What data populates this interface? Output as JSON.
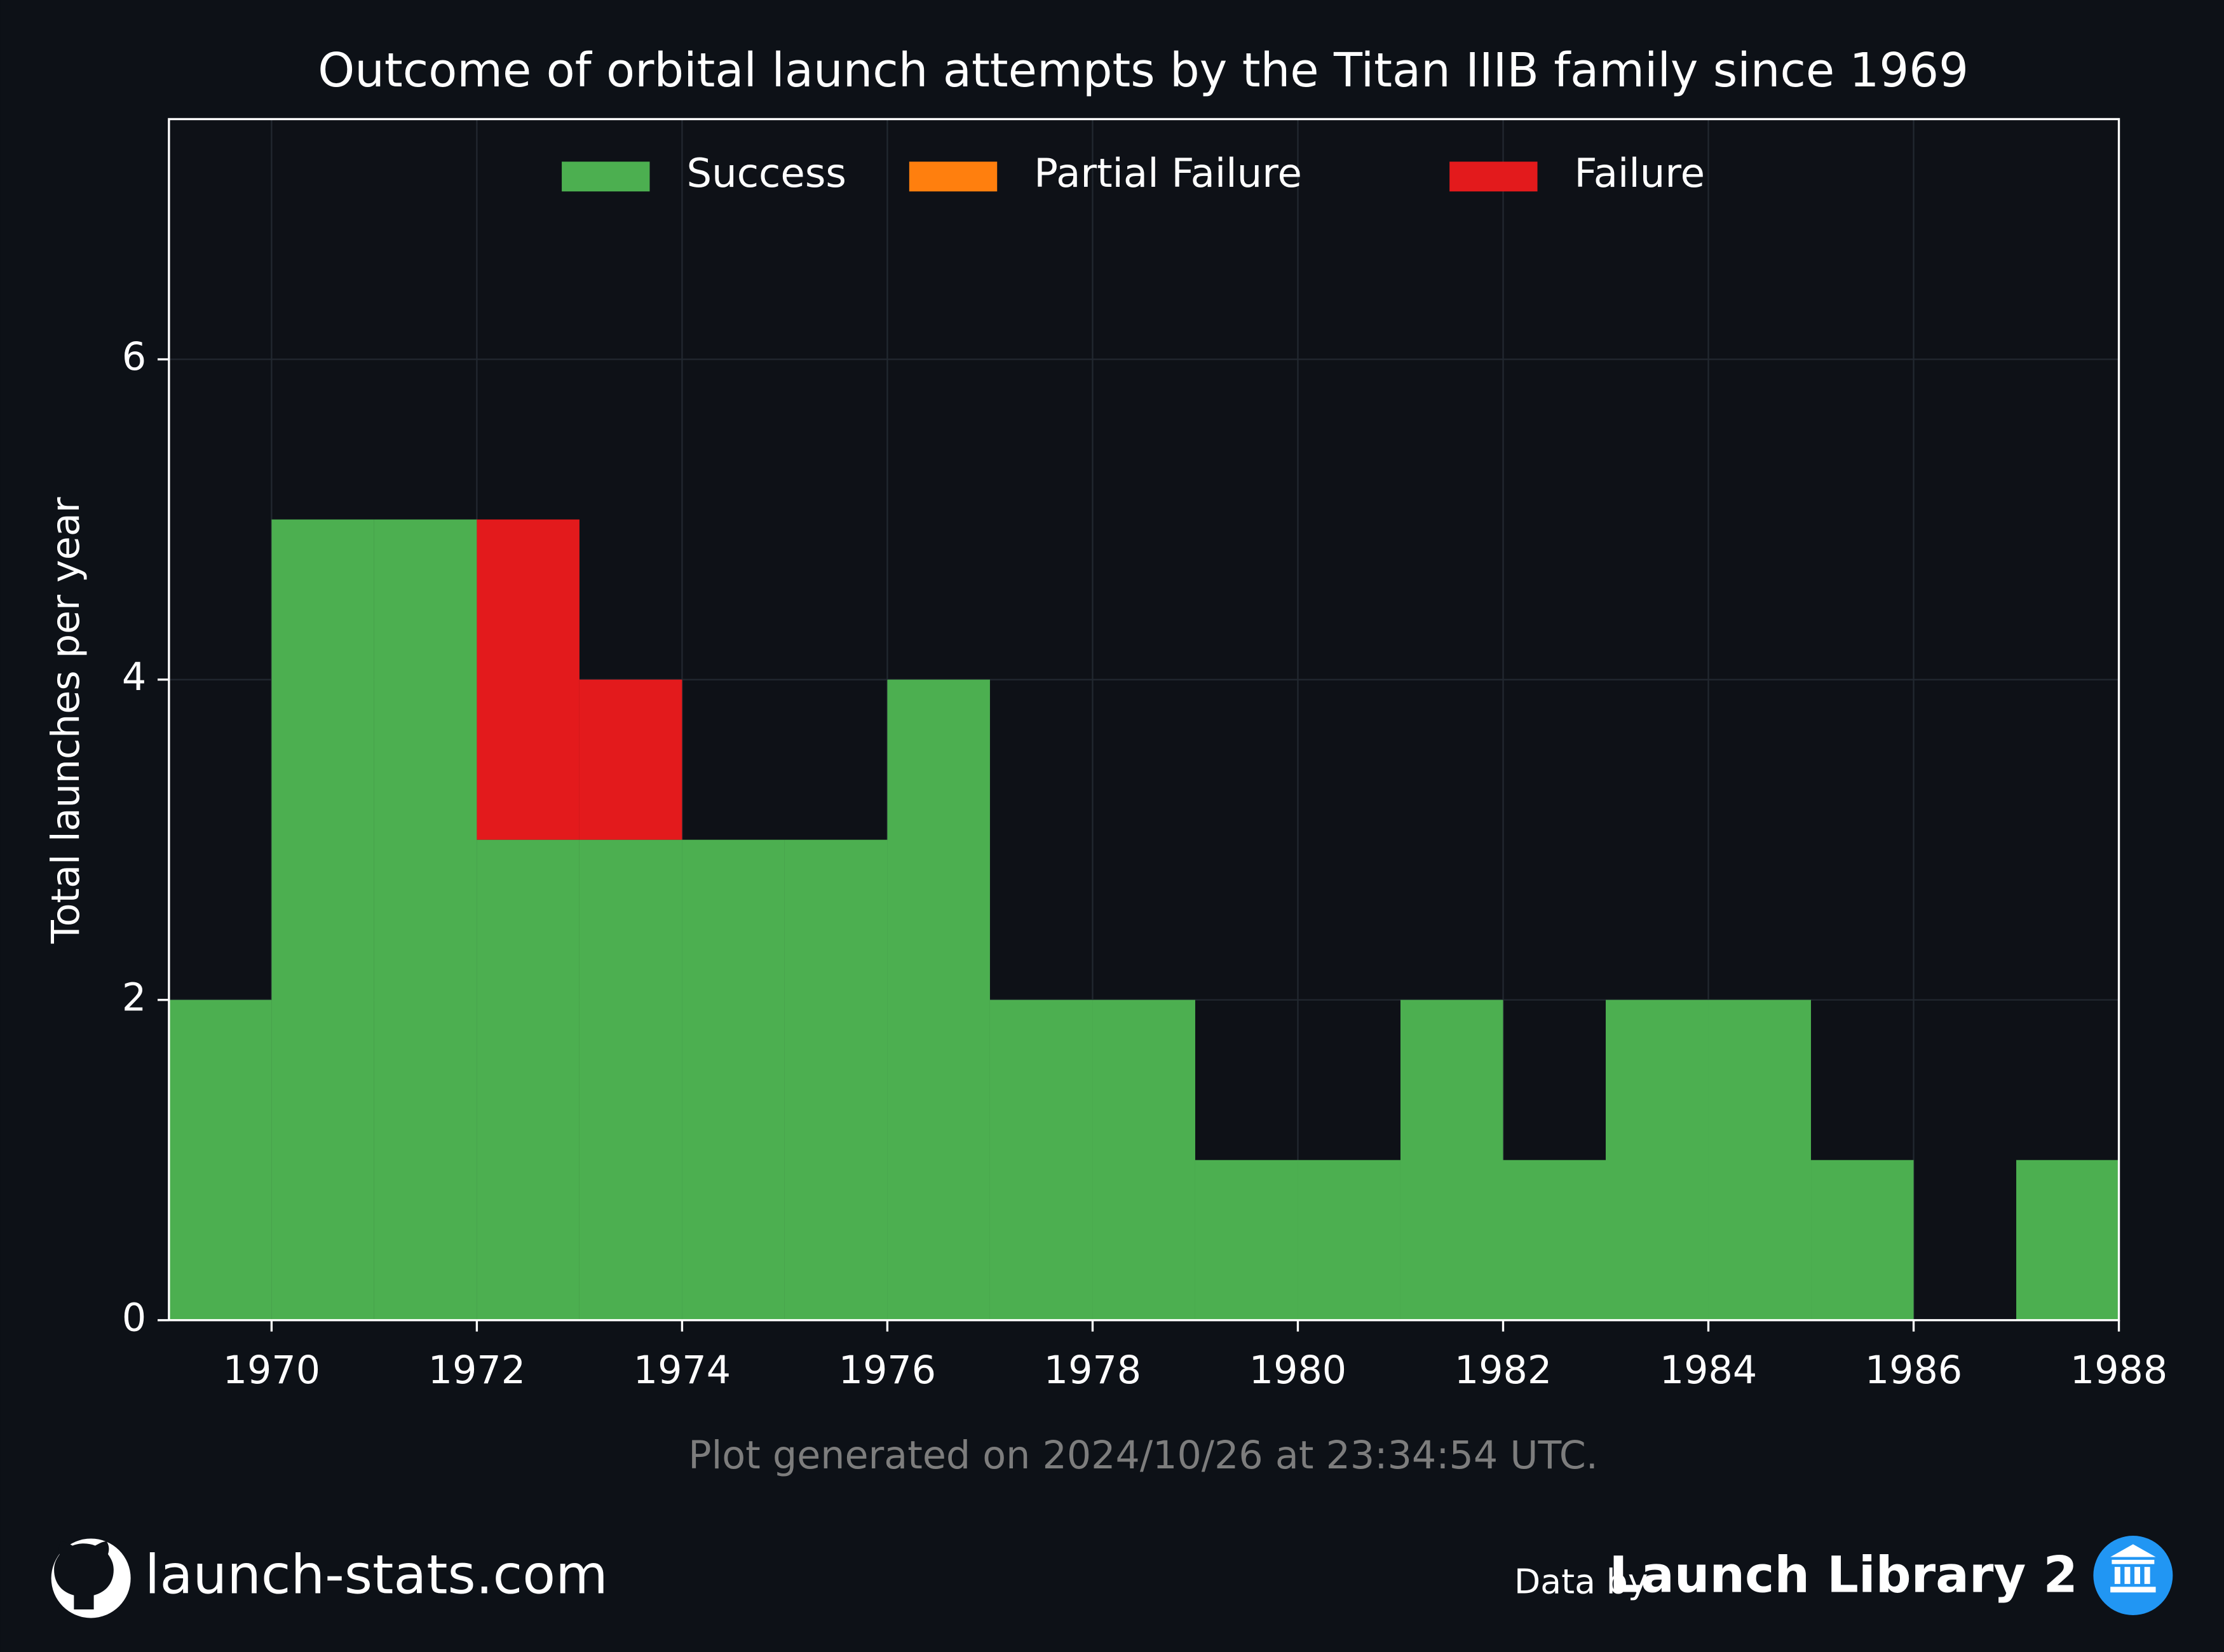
{
  "chart_data": {
    "type": "histogram",
    "stacked": true,
    "title": "Outcome of orbital launch attempts by the Titan IIIB family since 1969",
    "y_label": "Total launches per year",
    "note": "Plot generated on 2024/10/26 at 23:34:54 UTC.",
    "bins": [
      1969,
      1970,
      1971,
      1972,
      1973,
      1974,
      1975,
      1976,
      1977,
      1978,
      1979,
      1980,
      1981,
      1982,
      1983,
      1984,
      1985,
      1986,
      1987,
      1988
    ],
    "series": [
      {
        "name": "Success",
        "color": "#4caf50",
        "values": [
          2,
          5,
          5,
          3,
          3,
          3,
          3,
          4,
          2,
          2,
          1,
          1,
          2,
          1,
          2,
          2,
          1,
          0,
          1
        ]
      },
      {
        "name": "Partial Failure",
        "color": "#ff7f0e",
        "values": [
          0,
          0,
          0,
          0,
          0,
          0,
          0,
          0,
          0,
          0,
          0,
          0,
          0,
          0,
          0,
          0,
          0,
          0,
          0
        ]
      },
      {
        "name": "Failure",
        "color": "#e31a1c",
        "values": [
          0,
          0,
          0,
          2,
          1,
          0,
          0,
          0,
          0,
          0,
          0,
          0,
          0,
          0,
          0,
          0,
          0,
          0,
          0
        ]
      }
    ],
    "xlim": [
      1969,
      1988
    ],
    "xticks": [
      1970,
      1972,
      1974,
      1976,
      1978,
      1980,
      1982,
      1984,
      1986,
      1988
    ],
    "ylim": [
      0,
      7.5
    ],
    "yticks": [
      0,
      2,
      4,
      6
    ],
    "grid": true,
    "legend": "upper center"
  },
  "footer": {
    "site": "launch-stats.com",
    "credit_prefix": "Data by",
    "credit": "Launch Library 2"
  }
}
